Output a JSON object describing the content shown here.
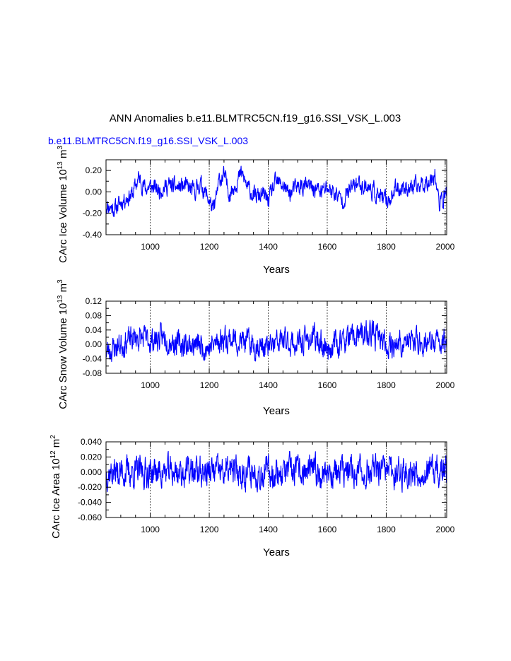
{
  "figure": {
    "title": "ANN Anomalies b.e11.BLMTRC5CN.f19_g16.SSI_VSK_L.003",
    "case_label": "b.e11.BLMTRC5CN.f19_g16.SSI_VSK_L.003",
    "series_color": "#0000ff"
  },
  "chart_data": [
    {
      "type": "line",
      "name": "ice-volume",
      "ylabel_main": "CArc Ice Volume 10",
      "ylabel_exp": "13",
      "ylabel_unit": " m",
      "ylabel_unit_exp": "3",
      "xlabel": "Years",
      "xlim": [
        850,
        2005
      ],
      "ylim": [
        -0.4,
        0.3
      ],
      "xticks": [
        1000,
        1200,
        1400,
        1600,
        1800,
        2000
      ],
      "xtick_labels": [
        "1000",
        "1200",
        "1400",
        "1600",
        "1800",
        "2000"
      ],
      "yticks": [
        -0.4,
        -0.2,
        0.0,
        0.2
      ],
      "ytick_labels": [
        "-0.40",
        "-0.20",
        "0.00",
        "0.20"
      ],
      "anchors": [
        [
          850,
          -0.12
        ],
        [
          880,
          -0.16
        ],
        [
          910,
          -0.07
        ],
        [
          940,
          -0.02
        ],
        [
          960,
          0.13
        ],
        [
          985,
          0.03
        ],
        [
          1000,
          0.05
        ],
        [
          1030,
          0.02
        ],
        [
          1060,
          0.06
        ],
        [
          1090,
          0.04
        ],
        [
          1120,
          0.05
        ],
        [
          1150,
          0.0
        ],
        [
          1170,
          0.08
        ],
        [
          1200,
          -0.08
        ],
        [
          1215,
          -0.18
        ],
        [
          1235,
          0.12
        ],
        [
          1250,
          0.15
        ],
        [
          1270,
          -0.02
        ],
        [
          1290,
          0.09
        ],
        [
          1310,
          0.17
        ],
        [
          1330,
          0.04
        ],
        [
          1355,
          -0.05
        ],
        [
          1380,
          -0.03
        ],
        [
          1400,
          -0.08
        ],
        [
          1425,
          0.08
        ],
        [
          1450,
          0.07
        ],
        [
          1470,
          -0.02
        ],
        [
          1500,
          0.05
        ],
        [
          1530,
          0.05
        ],
        [
          1560,
          0.03
        ],
        [
          1580,
          0.0
        ],
        [
          1600,
          0.04
        ],
        [
          1630,
          -0.02
        ],
        [
          1650,
          -0.08
        ],
        [
          1680,
          0.03
        ],
        [
          1700,
          0.08
        ],
        [
          1730,
          0.06
        ],
        [
          1760,
          0.0
        ],
        [
          1790,
          -0.08
        ],
        [
          1810,
          -0.07
        ],
        [
          1830,
          0.02
        ],
        [
          1860,
          0.05
        ],
        [
          1890,
          0.03
        ],
        [
          1920,
          0.07
        ],
        [
          1950,
          0.12
        ],
        [
          1965,
          0.18
        ],
        [
          1980,
          -0.13
        ],
        [
          2005,
          0.0
        ]
      ],
      "noise_amp": 0.065,
      "spike_max": 0.26,
      "spike_min": -0.3,
      "seed": 11
    },
    {
      "type": "line",
      "name": "snow-volume",
      "ylabel_main": "CArc Snow Volume 10",
      "ylabel_exp": "13",
      "ylabel_unit": " m",
      "ylabel_unit_exp": "3",
      "xlabel": "Years",
      "xlim": [
        850,
        2005
      ],
      "ylim": [
        -0.08,
        0.12
      ],
      "xticks": [
        1000,
        1200,
        1400,
        1600,
        1800,
        2000
      ],
      "xtick_labels": [
        "1000",
        "1200",
        "1400",
        "1600",
        "1800",
        "2000"
      ],
      "yticks": [
        -0.08,
        -0.04,
        0.0,
        0.04,
        0.08,
        0.12
      ],
      "ytick_labels": [
        "-0.08",
        "-0.04",
        "0.00",
        "0.04",
        "0.08",
        "0.12"
      ],
      "anchors": [
        [
          850,
          -0.02
        ],
        [
          900,
          0.0
        ],
        [
          950,
          0.02
        ],
        [
          1000,
          0.01
        ],
        [
          1050,
          0.02
        ],
        [
          1100,
          0.0
        ],
        [
          1150,
          0.0
        ],
        [
          1200,
          -0.01
        ],
        [
          1250,
          0.02
        ],
        [
          1300,
          0.01
        ],
        [
          1350,
          0.0
        ],
        [
          1400,
          -0.01
        ],
        [
          1450,
          0.01
        ],
        [
          1500,
          0.0
        ],
        [
          1550,
          0.02
        ],
        [
          1600,
          -0.01
        ],
        [
          1650,
          0.01
        ],
        [
          1700,
          0.02
        ],
        [
          1750,
          0.03
        ],
        [
          1800,
          0.0
        ],
        [
          1850,
          0.0
        ],
        [
          1900,
          0.01
        ],
        [
          1950,
          0.0
        ],
        [
          2005,
          0.01
        ]
      ],
      "noise_amp": 0.028,
      "spike_max": 0.115,
      "spike_min": -0.06,
      "seed": 23
    },
    {
      "type": "line",
      "name": "ice-area",
      "ylabel_main": "CArc Ice Area 10",
      "ylabel_exp": "12",
      "ylabel_unit": " m",
      "ylabel_unit_exp": "2",
      "xlabel": "Years",
      "xlim": [
        850,
        2005
      ],
      "ylim": [
        -0.06,
        0.04
      ],
      "xticks": [
        1000,
        1200,
        1400,
        1600,
        1800,
        2000
      ],
      "xtick_labels": [
        "1000",
        "1200",
        "1400",
        "1600",
        "1800",
        "2000"
      ],
      "yticks": [
        -0.06,
        -0.04,
        -0.02,
        0.0,
        0.02,
        0.04
      ],
      "ytick_labels": [
        "-0.060",
        "-0.040",
        "-0.020",
        "0.000",
        "0.020",
        "0.040"
      ],
      "anchors": [
        [
          850,
          0.0
        ],
        [
          1000,
          0.0
        ],
        [
          1200,
          0.0
        ],
        [
          1400,
          0.0
        ],
        [
          1600,
          0.0
        ],
        [
          1800,
          0.0
        ],
        [
          2005,
          0.0
        ]
      ],
      "noise_amp": 0.016,
      "spike_max": 0.036,
      "spike_min": -0.057,
      "seed": 37
    }
  ]
}
